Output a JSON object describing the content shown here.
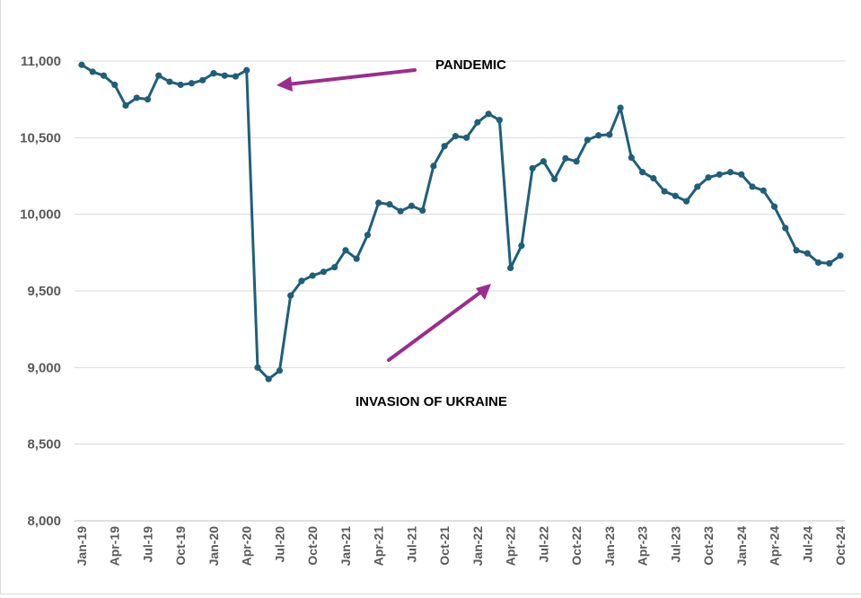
{
  "chart_data": {
    "type": "line",
    "title": "",
    "xlabel": "",
    "ylabel": "",
    "ylim": [
      8000,
      11000
    ],
    "yticks": [
      8000,
      8500,
      9000,
      9500,
      10000,
      10500,
      11000
    ],
    "ytick_labels": [
      "8,000",
      "8,500",
      "9,000",
      "9,500",
      "10,000",
      "10,500",
      "11,000"
    ],
    "grid": "horizontal",
    "legend": "none",
    "line_color": "#1f5f7a",
    "annotation_color": "#9b2c8f",
    "x": [
      "Jan-19",
      "Feb-19",
      "Mar-19",
      "Apr-19",
      "May-19",
      "Jun-19",
      "Jul-19",
      "Aug-19",
      "Sep-19",
      "Oct-19",
      "Nov-19",
      "Dec-19",
      "Jan-20",
      "Feb-20",
      "Mar-20",
      "Apr-20",
      "May-20",
      "Jun-20",
      "Jul-20",
      "Aug-20",
      "Sep-20",
      "Oct-20",
      "Nov-20",
      "Dec-20",
      "Jan-21",
      "Feb-21",
      "Mar-21",
      "Apr-21",
      "May-21",
      "Jun-21",
      "Jul-21",
      "Aug-21",
      "Sep-21",
      "Oct-21",
      "Nov-21",
      "Dec-21",
      "Jan-22",
      "Feb-22",
      "Mar-22",
      "Apr-22",
      "May-22",
      "Jun-22",
      "Jul-22",
      "Aug-22",
      "Sep-22",
      "Oct-22",
      "Nov-22",
      "Dec-22",
      "Jan-23",
      "Feb-23",
      "Mar-23",
      "Apr-23",
      "May-23",
      "Jun-23",
      "Jul-23",
      "Aug-23",
      "Sep-23",
      "Oct-23",
      "Nov-23",
      "Dec-23",
      "Jan-24",
      "Feb-24",
      "Mar-24",
      "Apr-24",
      "May-24",
      "Jun-24",
      "Jul-24",
      "Aug-24",
      "Sep-24",
      "Oct-24"
    ],
    "x_tick_labels": [
      "Jan-19",
      "Apr-19",
      "Jul-19",
      "Oct-19",
      "Jan-20",
      "Apr-20",
      "Jul-20",
      "Oct-20",
      "Jan-21",
      "Apr-21",
      "Jul-21",
      "Oct-21",
      "Jan-22",
      "Apr-22",
      "Jul-22",
      "Oct-22",
      "Jan-23",
      "Apr-23",
      "Jul-23",
      "Oct-23",
      "Jan-24",
      "Apr-24",
      "Jul-24",
      "Oct-24"
    ],
    "series": [
      {
        "values": [
          10975,
          10930,
          10905,
          10845,
          10710,
          10760,
          10750,
          10905,
          10865,
          10845,
          10855,
          10875,
          10920,
          10905,
          10900,
          10940,
          9000,
          8925,
          8980,
          9470,
          9565,
          9600,
          9625,
          9655,
          9765,
          9710,
          9865,
          10075,
          10065,
          10020,
          10055,
          10025,
          10315,
          10445,
          10510,
          10500,
          10600,
          10655,
          10615,
          9650,
          9795,
          10300,
          10345,
          10230,
          10365,
          10345,
          10485,
          10515,
          10520,
          10695,
          10370,
          10275,
          10235,
          10150,
          10120,
          10085,
          10180,
          10240,
          10260,
          10275,
          10260,
          10180,
          10155,
          10050,
          9910,
          9765,
          9745,
          9685,
          9680,
          9730
        ]
      }
    ],
    "annotations": [
      {
        "text": "PANDEMIC"
      },
      {
        "text": "INVASION OF UKRAINE"
      }
    ]
  }
}
